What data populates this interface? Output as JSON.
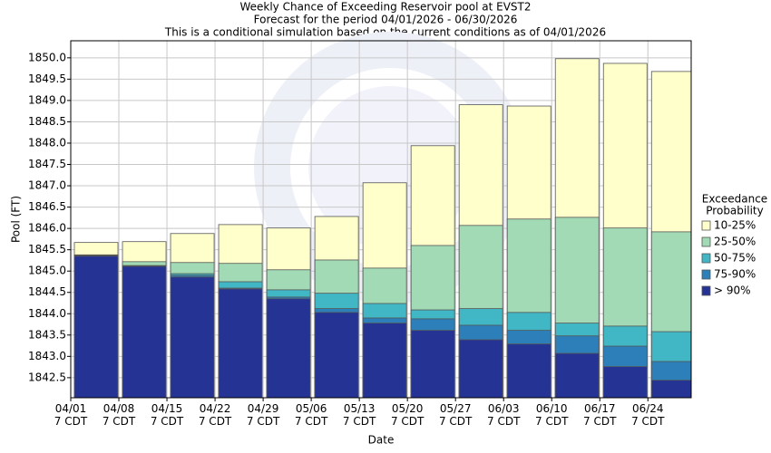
{
  "chart_data": {
    "type": "bar",
    "title": "Weekly Chance of Exceeding Reservoir pool at EVST2",
    "subtitles": [
      "Forecast for the period 04/01/2026 - 06/30/2026",
      "This is a conditional simulation based on the current conditions as of 04/01/2026"
    ],
    "x_label": "Date",
    "y_label": "Pool (FT)",
    "categories": [
      "04/01\n7 CDT",
      "04/08\n7 CDT",
      "04/15\n7 CDT",
      "04/22\n7 CDT",
      "04/29\n7 CDT",
      "05/06\n7 CDT",
      "05/13\n7 CDT",
      "05/20\n7 CDT",
      "05/27\n7 CDT",
      "06/03\n7 CDT",
      "06/10\n7 CDT",
      "06/17\n7 CDT",
      "06/24\n7 CDT"
    ],
    "legend_title": [
      "Exceedance",
      "Probability"
    ],
    "series": [
      {
        "name": "10-25%",
        "color": "#ffffcc",
        "values": [
          1845.67,
          1845.69,
          1845.88,
          1846.09,
          1846.01,
          1846.28,
          1847.07,
          1847.94,
          1848.9,
          1848.87,
          1849.98,
          1849.87,
          1849.68
        ]
      },
      {
        "name": "25-50%",
        "color": "#a1dab4",
        "values": [
          1845.38,
          1845.22,
          1845.2,
          1845.18,
          1845.03,
          1845.26,
          1845.07,
          1845.6,
          1846.07,
          1846.22,
          1846.26,
          1846.01,
          1845.92
        ]
      },
      {
        "name": "50-75%",
        "color": "#41b6c4",
        "values": [
          1845.37,
          1845.13,
          1844.94,
          1844.75,
          1844.56,
          1844.48,
          1844.24,
          1844.09,
          1844.12,
          1844.03,
          1843.78,
          1843.71,
          1843.58
        ]
      },
      {
        "name": "75-90%",
        "color": "#2c7fb8",
        "values": [
          1845.36,
          1845.12,
          1844.9,
          1844.6,
          1844.39,
          1844.12,
          1843.9,
          1843.88,
          1843.73,
          1843.61,
          1843.48,
          1843.24,
          1842.88
        ]
      },
      {
        "name": "> 90%",
        "color": "#253494",
        "values": [
          1845.35,
          1845.11,
          1844.86,
          1844.58,
          1844.35,
          1844.03,
          1843.78,
          1843.61,
          1843.39,
          1843.29,
          1843.07,
          1842.76,
          1842.44
        ]
      }
    ],
    "ylim": [
      1842.03,
      1850.4
    ],
    "yticks": [
      1842.5,
      {
        "value": 1843,
        "label": "1843.0"
      },
      1843.5,
      {
        "value": 1844,
        "label": "1844.0"
      },
      1844.5,
      {
        "value": 1845,
        "label": "1845.0"
      },
      1845.5,
      {
        "value": 1846,
        "label": "1846.0"
      },
      1846.5,
      {
        "value": 1847,
        "label": "1847.0"
      },
      1847.5,
      {
        "value": 1848,
        "label": "1848.0"
      },
      1848.5,
      {
        "value": 1849,
        "label": "1849.0"
      },
      1849.5,
      {
        "value": 1850,
        "label": "1850.0"
      }
    ],
    "grid": true
  }
}
